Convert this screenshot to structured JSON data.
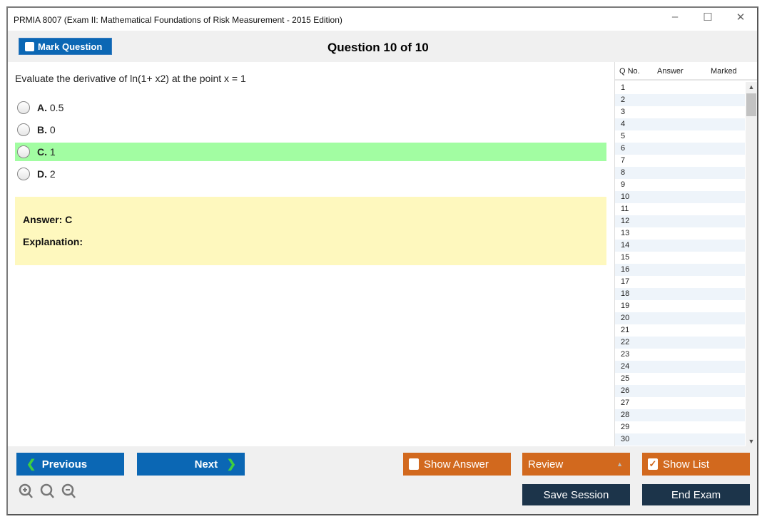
{
  "window": {
    "title": "PRMIA 8007 (Exam II: Mathematical Foundations of Risk Measurement - 2015 Edition)",
    "minimize": "–",
    "maximize": "☐",
    "close": "✕"
  },
  "header": {
    "mark_label": "Mark Question",
    "question_title": "Question 10 of 10"
  },
  "question": {
    "text": "Evaluate the derivative of ln(1+ x2) at the point x = 1",
    "options": [
      {
        "letter": "A.",
        "text": "0.5"
      },
      {
        "letter": "B.",
        "text": "0"
      },
      {
        "letter": "C.",
        "text": "1"
      },
      {
        "letter": "D.",
        "text": "2"
      }
    ],
    "highlighted": "C"
  },
  "answer": {
    "answer_label": "Answer: C",
    "explanation_label": "Explanation:"
  },
  "sidebar": {
    "headers": [
      "Q No.",
      "Answer",
      "Marked"
    ],
    "rows": [
      "1",
      "2",
      "3",
      "4",
      "5",
      "6",
      "7",
      "8",
      "9",
      "10",
      "11",
      "12",
      "13",
      "14",
      "15",
      "16",
      "17",
      "18",
      "19",
      "20",
      "21",
      "22",
      "23",
      "24",
      "25",
      "26",
      "27",
      "28",
      "29",
      "30"
    ]
  },
  "footer": {
    "previous": "Previous",
    "next": "Next",
    "show_answer": "Show Answer",
    "review": "Review",
    "show_list": "Show List",
    "save_session": "Save Session",
    "end_exam": "End Exam",
    "show_list_checked": true
  },
  "colors": {
    "blue": "#0b67b4",
    "orange": "#d2691e",
    "dark": "#1c344a",
    "highlight": "#a2fda2",
    "answer_bg": "#fef8be"
  }
}
